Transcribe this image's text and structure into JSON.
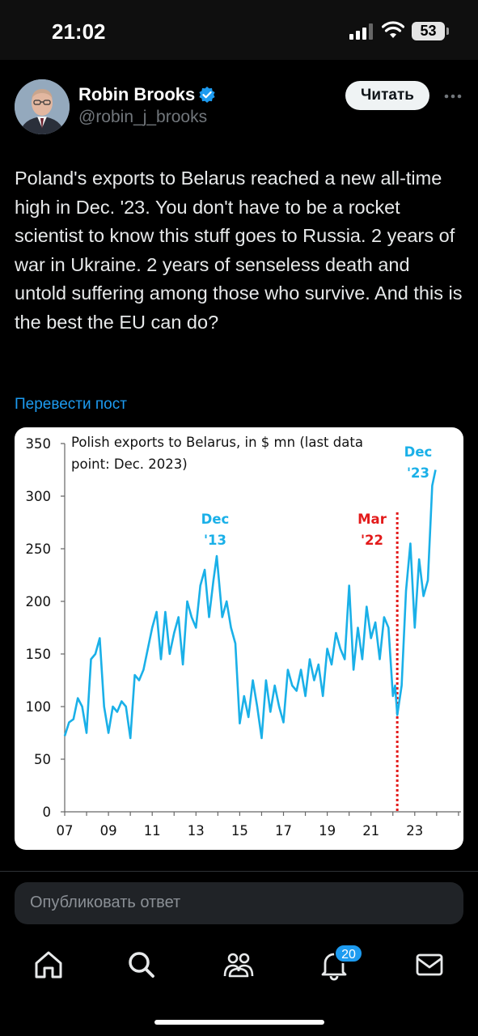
{
  "status_bar": {
    "time": "21:02",
    "battery": "53"
  },
  "author": {
    "name": "Robin Brooks",
    "handle": "@robin_j_brooks"
  },
  "follow_label": "Читать",
  "tweet_text": "Poland's exports to Belarus reached a new all-time high in Dec. '23. You don't have to be a rocket scientist to know this stuff goes to Russia. 2 years of war in Ukraine. 2 years of senseless death and untold suffering among those who survive. And this is the best the EU can do?",
  "translate_label": "Перевести пост",
  "reply_placeholder": "Опубликовать ответ",
  "notifications_badge": "20",
  "colors": {
    "accent": "#1d9bf0",
    "series": "#1ab0e8",
    "marker": "#e31b1b"
  },
  "icons": [
    "home-icon",
    "search-icon",
    "communities-icon",
    "bell-icon",
    "mail-icon",
    "verified-icon",
    "more-icon"
  ],
  "chart_data": {
    "type": "line",
    "title_line1": "Polish exports to Belarus, in $ mn (last data",
    "title_line2": "point: Dec. 2023)",
    "x_tick_labels": [
      "07",
      "09",
      "11",
      "13",
      "15",
      "17",
      "19",
      "21",
      "23"
    ],
    "y_tick_labels": [
      "350",
      "300",
      "250",
      "200",
      "150",
      "100",
      "50",
      "0"
    ],
    "ylim": [
      0,
      350
    ],
    "xlim": [
      2007,
      2024.1
    ],
    "grid": false,
    "annotations": [
      {
        "line1": "Dec",
        "line2": "'13",
        "color": "#1ab0e8"
      },
      {
        "line1": "Mar",
        "line2": "'22",
        "color": "#e31b1b"
      },
      {
        "line1": "Dec",
        "line2": "'23",
        "color": "#1ab0e8"
      }
    ],
    "vertical_marker_x": 2022.2,
    "series": [
      {
        "x": [
          2007.0,
          2007.2,
          2007.4,
          2007.6,
          2007.8,
          2008.0,
          2008.2,
          2008.4,
          2008.6,
          2008.8,
          2009.0,
          2009.2,
          2009.4,
          2009.6,
          2009.8,
          2010.0,
          2010.2,
          2010.4,
          2010.6,
          2010.8,
          2011.0,
          2011.2,
          2011.4,
          2011.6,
          2011.8,
          2012.0,
          2012.2,
          2012.4,
          2012.6,
          2012.8,
          2013.0,
          2013.2,
          2013.4,
          2013.6,
          2013.8,
          2013.95,
          2014.2,
          2014.4,
          2014.6,
          2014.8,
          2015.0,
          2015.2,
          2015.4,
          2015.6,
          2015.8,
          2016.0,
          2016.2,
          2016.4,
          2016.6,
          2016.8,
          2017.0,
          2017.2,
          2017.4,
          2017.6,
          2017.8,
          2018.0,
          2018.2,
          2018.4,
          2018.6,
          2018.8,
          2019.0,
          2019.2,
          2019.4,
          2019.6,
          2019.8,
          2020.0,
          2020.2,
          2020.4,
          2020.6,
          2020.8,
          2021.0,
          2021.2,
          2021.4,
          2021.6,
          2021.8,
          2022.0,
          2022.1,
          2022.2,
          2022.4,
          2022.6,
          2022.8,
          2023.0,
          2023.2,
          2023.4,
          2023.6,
          2023.8,
          2023.95
        ],
        "y": [
          72,
          85,
          88,
          108,
          100,
          75,
          145,
          150,
          165,
          100,
          75,
          100,
          95,
          105,
          100,
          70,
          130,
          125,
          135,
          155,
          175,
          190,
          145,
          190,
          150,
          170,
          185,
          140,
          200,
          185,
          175,
          215,
          230,
          185,
          220,
          243,
          185,
          200,
          175,
          160,
          84,
          110,
          90,
          125,
          100,
          70,
          125,
          95,
          120,
          100,
          85,
          135,
          120,
          115,
          135,
          110,
          145,
          125,
          140,
          110,
          155,
          140,
          170,
          155,
          145,
          215,
          135,
          175,
          145,
          195,
          165,
          180,
          145,
          185,
          175,
          110,
          120,
          92,
          120,
          210,
          255,
          175,
          240,
          205,
          220,
          310,
          325
        ]
      }
    ]
  }
}
